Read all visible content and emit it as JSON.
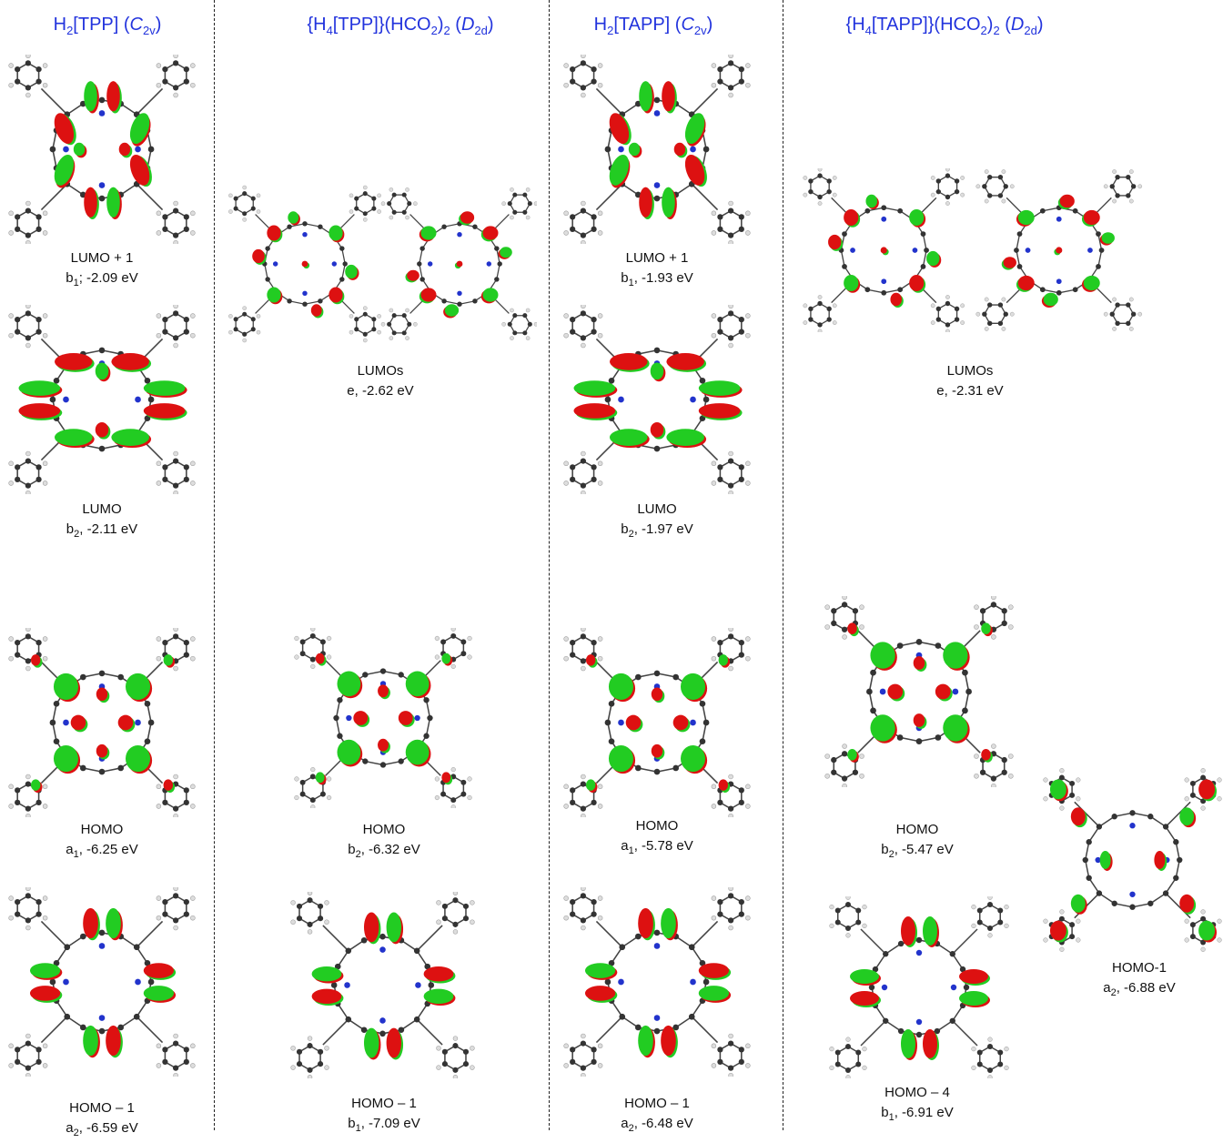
{
  "headers": [
    {
      "parts": [
        "H",
        {
          "sub": "2"
        },
        "[TPP] (",
        {
          "it": "C"
        },
        {
          "sub": "2v"
        },
        ")"
      ]
    },
    {
      "parts": [
        "{H",
        {
          "sub": "4"
        },
        "[TPP]}(HCO",
        {
          "sub": "2"
        },
        ")",
        {
          "sub": "2"
        },
        "  (",
        {
          "it": "D"
        },
        {
          "sub": "2d"
        },
        ")"
      ]
    },
    {
      "parts": [
        "H",
        {
          "sub": "2"
        },
        "[TAPP] (",
        {
          "it": "C"
        },
        {
          "sub": "2v"
        },
        ")"
      ]
    },
    {
      "parts": [
        "{H",
        {
          "sub": "4"
        },
        "[TAPP]}(HCO",
        {
          "sub": "2"
        },
        ")",
        {
          "sub": "2"
        },
        " (",
        {
          "it": "D"
        },
        {
          "sub": "2d"
        },
        ")"
      ]
    }
  ],
  "colors": {
    "header": "#2233dd",
    "lobe_green": "#22cc22",
    "lobe_red": "#dd1111",
    "carbon": "#333333",
    "nitrogen": "#2233cc",
    "hydrogen": "#dddddd"
  },
  "orbitals": [
    {
      "name": "LUMO + 1",
      "sym": "b",
      "sub": "1",
      "sep": "; ",
      "energy": "-2.09 eV",
      "pattern": "lumo1"
    },
    {
      "name": "LUMO",
      "sym": "b",
      "sub": "2",
      "sep": ", ",
      "energy": "-2.11 eV",
      "pattern": "lumo"
    },
    {
      "name": "HOMO",
      "sym": "a",
      "sub": "1",
      "sep": ", ",
      "energy": "-6.25 eV",
      "pattern": "homo"
    },
    {
      "name": "HOMO – 1",
      "sym": "a",
      "sub": "2",
      "sep": ", ",
      "energy": "-6.59 eV",
      "pattern": "homo1"
    },
    {
      "name": "LUMOs",
      "sym": "e",
      "sub": "",
      "sep": ", ",
      "energy": "-2.62 eV",
      "pattern": "lumos"
    },
    {
      "name": "HOMO",
      "sym": "b",
      "sub": "2",
      "sep": ", ",
      "energy": "-6.32 eV",
      "pattern": "homo"
    },
    {
      "name": "HOMO – 1",
      "sym": "b",
      "sub": "1",
      "sep": ", ",
      "energy": "-7.09 eV",
      "pattern": "homo1"
    },
    {
      "name": "LUMO + 1",
      "sym": "b",
      "sub": "1",
      "sep": ", ",
      "energy": "-1.93 eV",
      "pattern": "lumo1"
    },
    {
      "name": "LUMO",
      "sym": "b",
      "sub": "2",
      "sep": ", ",
      "energy": "-1.97 eV",
      "pattern": "lumo"
    },
    {
      "name": "HOMO",
      "sym": "a",
      "sub": "1",
      "sep": ", ",
      "energy": "-5.78 eV",
      "pattern": "homo"
    },
    {
      "name": "HOMO – 1",
      "sym": "a",
      "sub": "2",
      "sep": ", ",
      "energy": "-6.48 eV",
      "pattern": "homo1"
    },
    {
      "name": "LUMOs",
      "sym": "e",
      "sub": "",
      "sep": ", ",
      "energy": "-2.31 eV",
      "pattern": "lumos"
    },
    {
      "name": "HOMO",
      "sym": "b",
      "sub": "2",
      "sep": ", ",
      "energy": "-5.47 eV",
      "pattern": "homo"
    },
    {
      "name": "HOMO – 4",
      "sym": "b",
      "sub": "1",
      "sep": ", ",
      "energy": "-6.91 eV",
      "pattern": "homo1"
    },
    {
      "name": "HOMO-1",
      "sym": "a",
      "sub": "2",
      "sep": ", ",
      "energy": "-6.88 eV",
      "pattern": "homoA"
    }
  ]
}
